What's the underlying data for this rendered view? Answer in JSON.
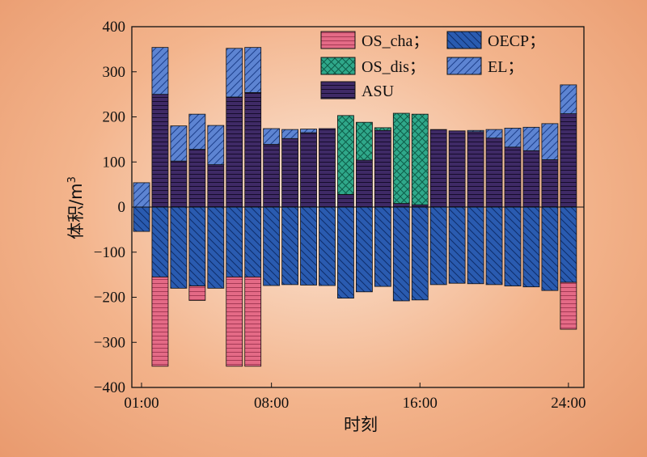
{
  "chart_data": {
    "type": "bar",
    "stacked": true,
    "xlabel": "时刻",
    "ylabel": "体积/m",
    "ylabel_superscript": "3",
    "ylim": [
      -400,
      400
    ],
    "yticks": [
      -400,
      -300,
      -200,
      -100,
      0,
      100,
      200,
      300,
      400
    ],
    "ytick_labels": [
      "−400",
      "−300",
      "−200",
      "−100",
      "0",
      "100",
      "200",
      "300",
      "400"
    ],
    "xticks": [
      1,
      8,
      16,
      24
    ],
    "xtick_labels": [
      "01:00",
      "08:00",
      "16:00",
      "24:00"
    ],
    "x": [
      1,
      2,
      3,
      4,
      5,
      6,
      7,
      8,
      9,
      10,
      11,
      12,
      13,
      14,
      15,
      16,
      17,
      18,
      19,
      20,
      21,
      22,
      23,
      24
    ],
    "legend_position": "top-right",
    "grid": false,
    "positive_series": [
      {
        "name": "ASU",
        "color": "#3f2a66",
        "pattern": "hlines",
        "values": [
          0,
          250,
          102,
          128,
          94,
          244,
          254,
          139,
          152,
          165,
          174,
          28,
          104,
          170,
          8,
          5,
          172,
          169,
          167,
          153,
          133,
          125,
          105,
          207
        ]
      },
      {
        "name": "OS_dis",
        "color": "#2fa88a",
        "pattern": "crosshatch",
        "values": [
          0,
          0,
          0,
          0,
          0,
          0,
          0,
          0,
          0,
          0,
          0,
          175,
          84,
          6,
          200,
          201,
          0,
          0,
          0,
          0,
          0,
          0,
          0,
          0
        ]
      },
      {
        "name": "EL",
        "color": "#5d84d2",
        "pattern": "diag",
        "values": [
          54,
          104,
          78,
          78,
          87,
          108,
          100,
          35,
          20,
          8,
          0,
          0,
          0,
          0,
          0,
          0,
          0,
          0,
          3,
          19,
          42,
          52,
          80,
          64
        ]
      }
    ],
    "negative_series": [
      {
        "name": "OECP",
        "color": "#2a5bb0",
        "pattern": "back-diag",
        "values": [
          -54,
          -155,
          -180,
          -175,
          -180,
          -155,
          -155,
          -174,
          -172,
          -173,
          -174,
          -202,
          -188,
          -176,
          -208,
          -206,
          -172,
          -169,
          -170,
          -172,
          -175,
          -177,
          -185,
          -167
        ]
      },
      {
        "name": "OS_cha",
        "color": "#e46a86",
        "pattern": "hlines",
        "values": [
          0,
          -198,
          0,
          -32,
          0,
          -198,
          -198,
          0,
          0,
          0,
          0,
          0,
          0,
          0,
          0,
          0,
          0,
          0,
          0,
          0,
          0,
          0,
          0,
          -104
        ]
      }
    ],
    "legend": [
      "OS_cha；",
      "OECP；",
      "OS_dis；",
      "EL；",
      "ASU"
    ]
  },
  "colors": {
    "ASU": "#3f2a66",
    "OS_dis": "#2fa88a",
    "EL": "#5d84d2",
    "OECP": "#2a5bb0",
    "OS_cha": "#e46a86"
  }
}
